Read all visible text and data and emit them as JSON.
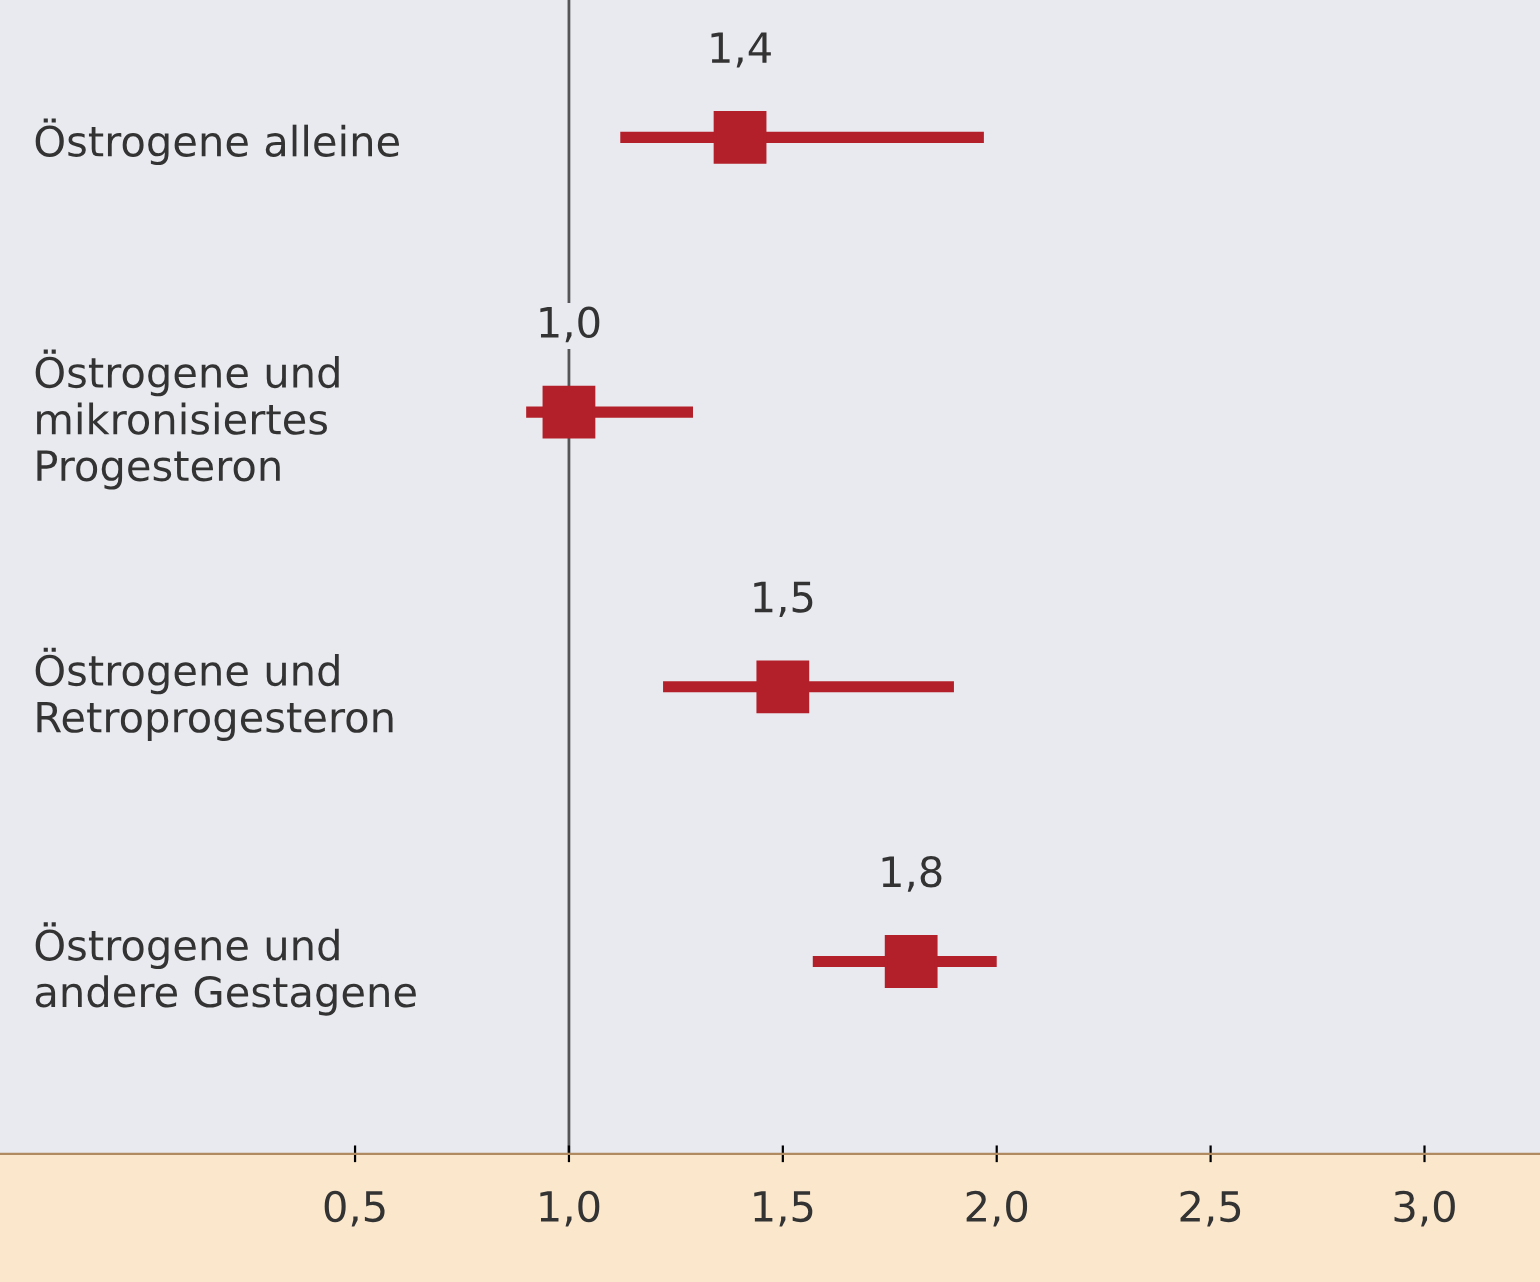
{
  "chart_data": {
    "type": "scatter",
    "orientation": "horizontal",
    "categories": [
      "Östrogene alleine",
      "Östrogene und\nmikronisiertes\nProgesteron",
      "Östrogene und\nRetroprogesteron",
      "Östrogene und\nandere Gestagene"
    ],
    "series": [
      {
        "color": "#b3202a",
        "values": [
          1.4,
          1.0,
          1.5,
          1.8
        ],
        "errors": [
          [
            1.12,
            1.97
          ],
          [
            0.9,
            1.29
          ],
          [
            1.22,
            1.9
          ],
          [
            1.57,
            2.0
          ]
        ],
        "value_labels": [
          "1,4",
          "1,0",
          "1,5",
          "1,8"
        ]
      }
    ],
    "marker": "square",
    "xlim": [
      -0.33,
      3.27
    ],
    "xticks": [
      {
        "value": 0.5,
        "label": "0,5"
      },
      {
        "value": 1.0,
        "label": "1,0"
      },
      {
        "value": 1.5,
        "label": "1,5"
      },
      {
        "value": 2.0,
        "label": "2,0"
      },
      {
        "value": 2.5,
        "label": "2,5"
      },
      {
        "value": 3.0,
        "label": "3,0"
      }
    ],
    "ref_lines": [
      {
        "axis": "x",
        "value": 1.0,
        "label": null,
        "color": "#555555"
      }
    ],
    "grid": false
  }
}
